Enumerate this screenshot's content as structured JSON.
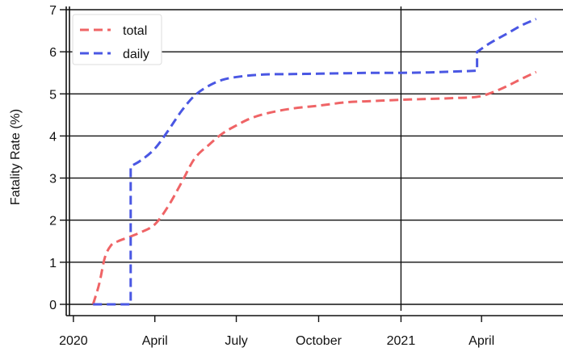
{
  "chart_data": {
    "type": "line",
    "xlabel": "",
    "ylabel": "Fatality Rate (%)",
    "ylim": [
      0,
      7
    ],
    "xlim": [
      "2019-12-24",
      "2021-07-01"
    ],
    "grid": {
      "horizontal": true,
      "vertical": "2021 only"
    },
    "legend_position": "top-left",
    "x_ticks": [
      {
        "date": "2020-01-01",
        "label": "2020"
      },
      {
        "date": "2020-04-01",
        "label": "April"
      },
      {
        "date": "2020-07-01",
        "label": "July"
      },
      {
        "date": "2020-10-01",
        "label": "October"
      },
      {
        "date": "2021-01-01",
        "label": "2021"
      },
      {
        "date": "2021-04-01",
        "label": "April"
      }
    ],
    "y_ticks": [
      0,
      1,
      2,
      3,
      4,
      5,
      6,
      7
    ],
    "series": [
      {
        "name": "total",
        "color": "#ef6466",
        "points": [
          [
            "2020-01-23",
            0.0
          ],
          [
            "2020-01-30",
            0.5
          ],
          [
            "2020-02-05",
            1.1
          ],
          [
            "2020-02-12",
            1.4
          ],
          [
            "2020-02-20",
            1.5
          ],
          [
            "2020-03-01",
            1.58
          ],
          [
            "2020-03-15",
            1.7
          ],
          [
            "2020-04-01",
            1.9
          ],
          [
            "2020-04-15",
            2.3
          ],
          [
            "2020-05-01",
            2.9
          ],
          [
            "2020-05-15",
            3.45
          ],
          [
            "2020-06-01",
            3.8
          ],
          [
            "2020-06-15",
            4.05
          ],
          [
            "2020-07-01",
            4.25
          ],
          [
            "2020-07-15",
            4.4
          ],
          [
            "2020-08-01",
            4.52
          ],
          [
            "2020-09-01",
            4.65
          ],
          [
            "2020-10-01",
            4.72
          ],
          [
            "2020-11-01",
            4.8
          ],
          [
            "2020-12-01",
            4.83
          ],
          [
            "2021-01-01",
            4.86
          ],
          [
            "2021-02-01",
            4.88
          ],
          [
            "2021-03-01",
            4.9
          ],
          [
            "2021-03-30",
            4.94
          ],
          [
            "2021-04-15",
            5.05
          ],
          [
            "2021-05-01",
            5.2
          ],
          [
            "2021-05-15",
            5.35
          ],
          [
            "2021-06-01",
            5.52
          ]
        ]
      },
      {
        "name": "daily",
        "color": "#4a57e3",
        "points": [
          [
            "2020-01-23",
            0.0
          ],
          [
            "2020-03-05",
            0.0
          ],
          [
            "2020-03-05",
            3.28
          ],
          [
            "2020-03-15",
            3.4
          ],
          [
            "2020-04-01",
            3.7
          ],
          [
            "2020-04-15",
            4.1
          ],
          [
            "2020-05-01",
            4.6
          ],
          [
            "2020-05-15",
            4.95
          ],
          [
            "2020-06-01",
            5.2
          ],
          [
            "2020-06-15",
            5.33
          ],
          [
            "2020-07-01",
            5.4
          ],
          [
            "2020-08-01",
            5.46
          ],
          [
            "2020-09-01",
            5.47
          ],
          [
            "2020-10-01",
            5.48
          ],
          [
            "2020-11-01",
            5.49
          ],
          [
            "2020-12-01",
            5.5
          ],
          [
            "2021-01-01",
            5.5
          ],
          [
            "2021-02-01",
            5.51
          ],
          [
            "2021-03-01",
            5.53
          ],
          [
            "2021-03-27",
            5.55
          ],
          [
            "2021-03-27",
            6.0
          ],
          [
            "2021-04-10",
            6.2
          ],
          [
            "2021-05-01",
            6.45
          ],
          [
            "2021-05-15",
            6.62
          ],
          [
            "2021-06-01",
            6.78
          ]
        ]
      }
    ]
  }
}
